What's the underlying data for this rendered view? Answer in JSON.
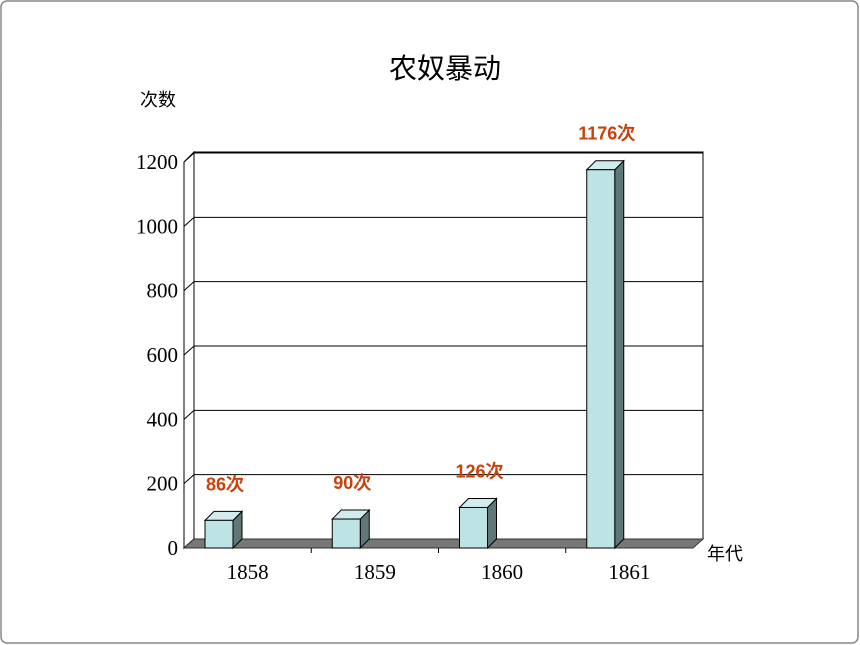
{
  "chart_data": {
    "type": "bar3d",
    "title": "农奴暴动",
    "y_label": "次数",
    "x_label": "年代",
    "categories": [
      "1858",
      "1859",
      "1860",
      "1861"
    ],
    "values": [
      86,
      90,
      126,
      1176
    ],
    "value_labels": [
      "86次",
      "90次",
      "126次",
      "1176次"
    ],
    "color": "#bde3e5",
    "label_color": "#c8400c",
    "ylim": [
      0,
      1200
    ],
    "yticks": [
      0,
      200,
      400,
      600,
      800,
      1000,
      1200
    ],
    "grid": true
  }
}
